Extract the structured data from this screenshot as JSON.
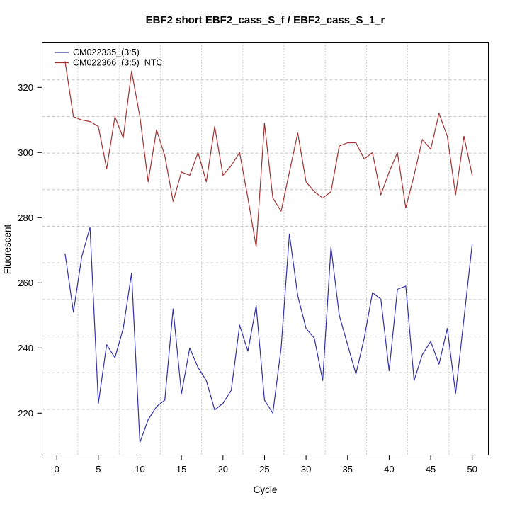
{
  "title": "EBF2 short EBF2_cass_S_f / EBF2_cass_S_1_r",
  "x_axis_label": "Cycle",
  "y_axis_label": "Fluorescent",
  "colors": {
    "series1": "#3131a5",
    "series2": "#a03232",
    "grid_h": "#c4c4c4",
    "grid_v": "#9a9a9a",
    "axis": "#000000"
  },
  "legend": [
    {
      "label": "CM022335_(3:5)",
      "color": "#3131a5"
    },
    {
      "label": "CM022366_(3:5)_NTC",
      "color": "#a03232"
    }
  ],
  "chart_data": {
    "type": "line",
    "title": "EBF2 short EBF2_cass_S_f / EBF2_cass_S_1_r",
    "xlabel": "Cycle",
    "ylabel": "Fluorescent",
    "x_ticks": [
      0,
      5,
      10,
      15,
      20,
      25,
      30,
      35,
      40,
      45,
      50
    ],
    "y_ticks": [
      220,
      240,
      260,
      280,
      300,
      320
    ],
    "xlim": [
      -1,
      52
    ],
    "ylim": [
      207,
      333
    ],
    "grid": true,
    "legend_position": "top-left",
    "x": [
      1,
      2,
      3,
      4,
      5,
      6,
      7,
      8,
      9,
      10,
      11,
      12,
      13,
      14,
      15,
      16,
      17,
      18,
      19,
      20,
      21,
      22,
      23,
      24,
      25,
      26,
      27,
      28,
      29,
      30,
      31,
      32,
      33,
      34,
      35,
      36,
      37,
      38,
      39,
      40,
      41,
      42,
      43,
      44,
      45,
      46,
      47,
      48,
      49,
      50
    ],
    "series": [
      {
        "name": "CM022335_(3:5)",
        "color": "#3131a5",
        "values": [
          269,
          251,
          268,
          277,
          223,
          241,
          237,
          246,
          263,
          211,
          218,
          222,
          224,
          252,
          226,
          240,
          234,
          230,
          221,
          223,
          227,
          247,
          239,
          253,
          224,
          220,
          240,
          275,
          256,
          246,
          243,
          230,
          271,
          250,
          241,
          232,
          243,
          257,
          255,
          233,
          258,
          259,
          230,
          238,
          242,
          235,
          246,
          226,
          249,
          272
        ]
      },
      {
        "name": "CM022366_(3:5)_NTC",
        "color": "#a03232",
        "values": [
          328,
          311,
          310,
          309.5,
          308,
          295,
          311,
          304.5,
          325,
          311,
          291,
          307,
          299,
          285,
          294,
          293,
          300,
          291,
          308,
          293,
          296,
          300,
          286,
          271,
          309,
          286,
          282,
          294,
          306,
          291,
          288,
          286,
          288,
          302,
          303,
          303,
          298,
          300,
          287,
          294,
          300,
          283,
          293,
          304,
          301,
          312,
          305,
          287,
          305,
          293
        ]
      }
    ]
  }
}
